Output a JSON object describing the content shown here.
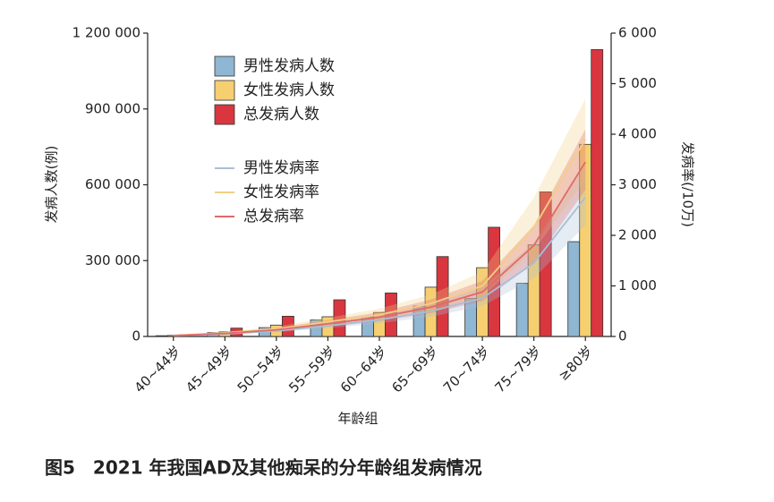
{
  "chart_data": {
    "type": "bar-line",
    "title": "图5　2021 年我国AD及其他痴呆的分年龄组发病情况",
    "x_label": "年龄组",
    "y_label": "发病人数(例)",
    "y2_label": "发病率(/10万)",
    "categories": [
      "40~44岁",
      "45~49岁",
      "50~54岁",
      "55~59岁",
      "60~64岁",
      "65~69岁",
      "70~74岁",
      "75~79岁",
      "≥80岁"
    ],
    "ylim": [
      0,
      1200000
    ],
    "yticks": [
      0,
      {
        "value": 300000,
        "label": "300 000"
      },
      {
        "value": 600000,
        "label": "600 000"
      },
      {
        "value": 900000,
        "label": "900 000"
      },
      {
        "value": 1200000,
        "label": "1 200 000"
      }
    ],
    "y2lim": [
      0,
      6000
    ],
    "y2ticks": [
      0,
      {
        "value": 1000,
        "label": "1 000"
      },
      {
        "value": 2000,
        "label": "2 000"
      },
      {
        "value": 3000,
        "label": "3 000"
      },
      {
        "value": 4000,
        "label": "4 000"
      },
      {
        "value": 5000,
        "label": "5 000"
      },
      {
        "value": 6000,
        "label": "6 000"
      }
    ],
    "series": [
      {
        "name": "男性发病人数",
        "kind": "bar",
        "color": "#8fb6d2",
        "values": [
          3000,
          15000,
          35000,
          65000,
          78000,
          120000,
          150000,
          210000,
          375000
        ]
      },
      {
        "name": "女性发病人数",
        "kind": "bar",
        "color": "#f6cf70",
        "values": [
          4000,
          18000,
          45000,
          78000,
          95000,
          195000,
          272000,
          362000,
          760000
        ]
      },
      {
        "name": "总发病人数",
        "kind": "bar",
        "color": "#d9363f",
        "values": [
          7000,
          33000,
          80000,
          145000,
          172000,
          316000,
          432000,
          572000,
          1135000
        ]
      },
      {
        "name": "男性发病率",
        "kind": "line",
        "axis": "y2",
        "color": "#a8bfd8",
        "values": [
          15,
          50,
          110,
          210,
          330,
          500,
          760,
          1450,
          2750
        ],
        "lower": [
          10,
          38,
          85,
          165,
          260,
          390,
          600,
          1150,
          2200
        ],
        "upper": [
          20,
          65,
          140,
          265,
          420,
          640,
          970,
          1850,
          3450
        ]
      },
      {
        "name": "女性发病率",
        "kind": "line",
        "axis": "y2",
        "color": "#f3cf85",
        "values": [
          20,
          70,
          150,
          290,
          430,
          650,
          1000,
          2150,
          3900
        ],
        "lower": [
          14,
          52,
          115,
          225,
          340,
          510,
          790,
          1700,
          3100
        ],
        "upper": [
          27,
          90,
          195,
          370,
          550,
          830,
          1280,
          2750,
          4700
        ]
      },
      {
        "name": "总发病率",
        "kind": "line",
        "axis": "y2",
        "color": "#df6a6a",
        "values": [
          18,
          60,
          130,
          250,
          380,
          580,
          880,
          1800,
          3450
        ],
        "lower": [
          12,
          45,
          100,
          190,
          300,
          460,
          700,
          1450,
          2900
        ],
        "upper": [
          25,
          80,
          170,
          320,
          480,
          730,
          1100,
          2200,
          4100
        ]
      }
    ]
  }
}
